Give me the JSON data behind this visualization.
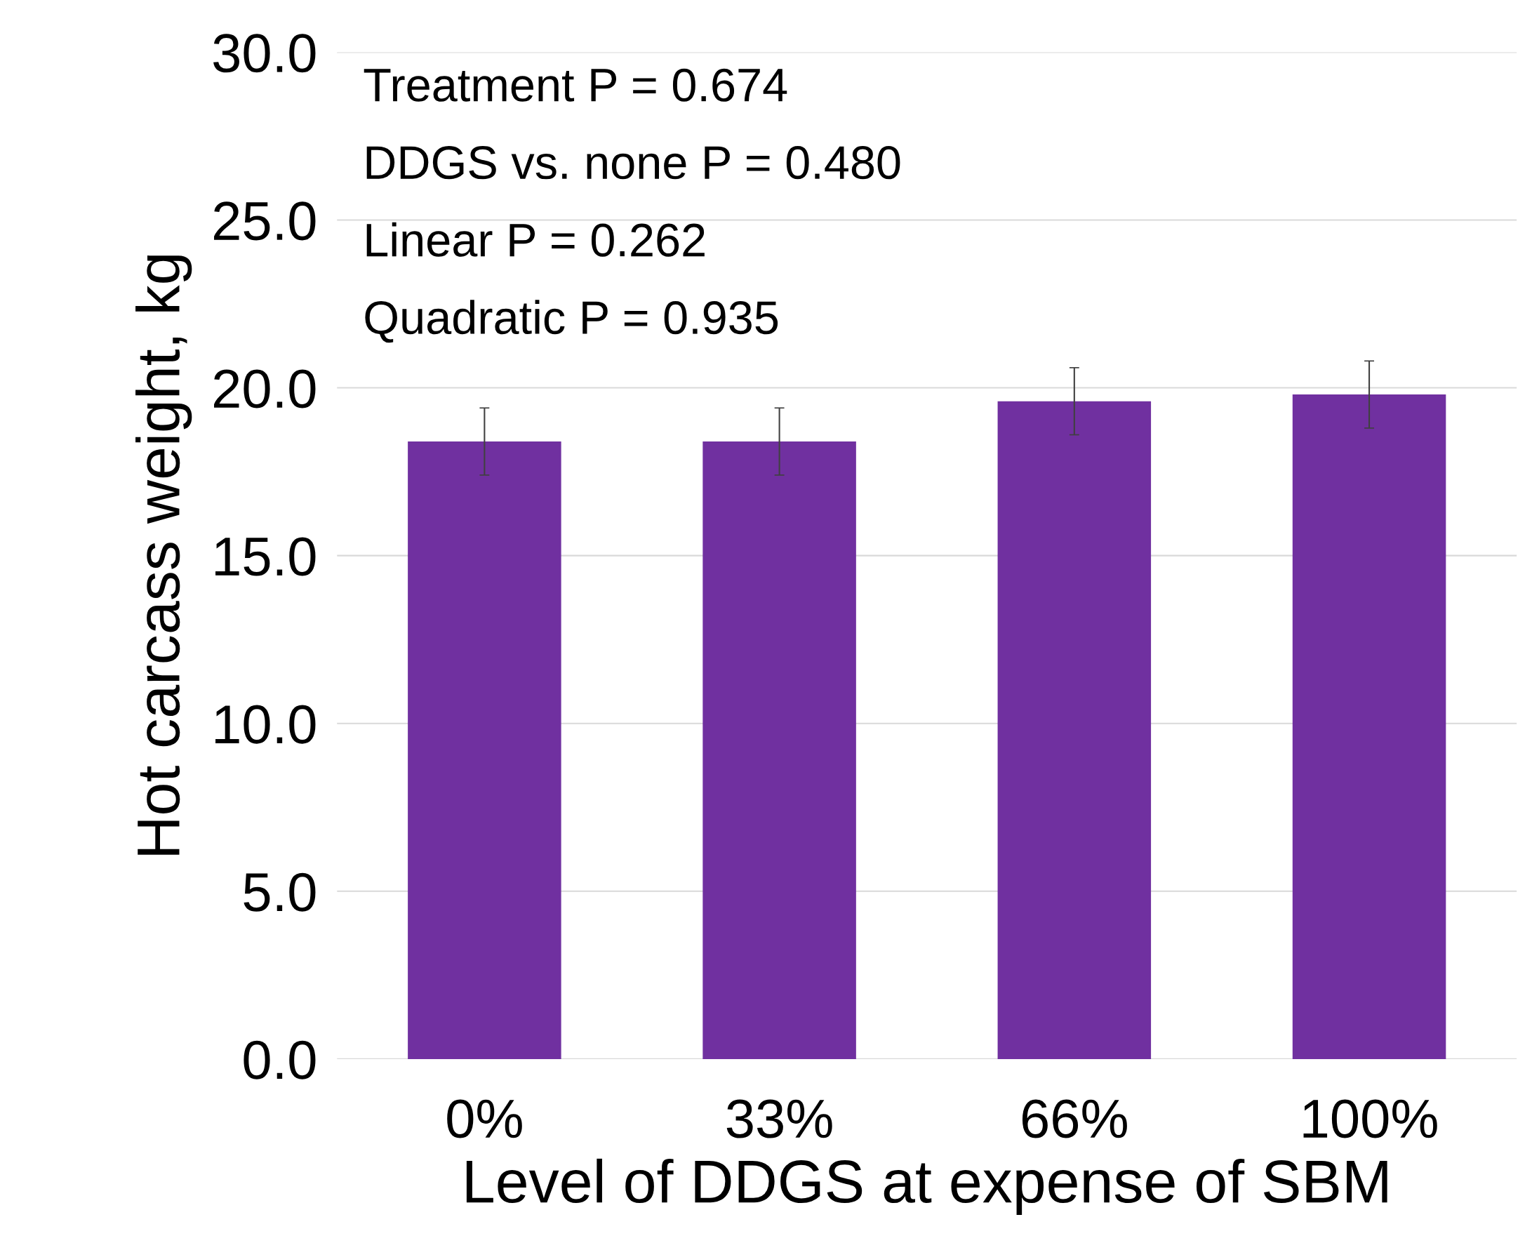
{
  "chart_data": {
    "type": "bar",
    "categories": [
      "0%",
      "33%",
      "66%",
      "100%"
    ],
    "values": [
      18.4,
      18.4,
      19.6,
      19.8
    ],
    "errors": [
      1.0,
      1.0,
      1.0,
      1.0
    ],
    "color": "#7030a0",
    "xlabel": "Level of DDGS at expense of SBM",
    "ylabel": "Hot carcass weight, kg",
    "ylim": [
      0,
      30
    ],
    "yticks": [
      {
        "value": 0,
        "label": "0.0"
      },
      {
        "value": 5,
        "label": "5.0"
      },
      {
        "value": 10,
        "label": "10.0"
      },
      {
        "value": 15,
        "label": "15.0"
      },
      {
        "value": 20,
        "label": "20.0"
      },
      {
        "value": 25,
        "label": "25.0"
      },
      {
        "value": 30,
        "label": "30.0"
      }
    ],
    "grid": "y",
    "annotations": [
      "Treatment P = 0.674",
      "DDGS vs. none P = 0.480",
      "Linear P = 0.262",
      "Quadratic P = 0.935"
    ]
  }
}
